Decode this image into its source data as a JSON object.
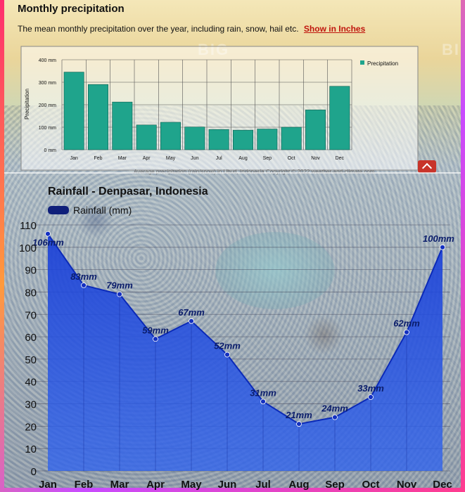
{
  "top": {
    "title": "Monthly precipitation",
    "subtitle": "The mean monthly precipitation over the year, including rain, snow, hail etc.",
    "show_inches": "Show in Inches",
    "caption": "Average precipitation (rain/snow) in Ubud, Indonesia   Copyright © 2022  weather-and-climate.com",
    "watermark": "BIG"
  },
  "chart_data": [
    {
      "type": "bar",
      "categories": [
        "Jan",
        "Feb",
        "Mar",
        "Apr",
        "May",
        "Jun",
        "Jul",
        "Aug",
        "Sep",
        "Oct",
        "Nov",
        "Dec"
      ],
      "series": [
        {
          "name": "Precipitation",
          "values": [
            345,
            290,
            212,
            110,
            122,
            101,
            90,
            87,
            92,
            100,
            177,
            282
          ]
        }
      ],
      "ylabel": "Precipitation",
      "ylim": [
        0,
        400
      ],
      "yticks": [
        "0 mm",
        "100 mm",
        "200 mm",
        "300 mm",
        "400 mm"
      ],
      "tick_values": [
        0,
        100,
        200,
        300,
        400
      ],
      "grid": true,
      "legend": "right",
      "color": "#1fa48c"
    },
    {
      "type": "area",
      "title": "Rainfall - Denpasar, Indonesia",
      "categories": [
        "Jan",
        "Feb",
        "Mar",
        "Apr",
        "May",
        "Jun",
        "Jul",
        "Aug",
        "Sep",
        "Oct",
        "Nov",
        "Dec"
      ],
      "series": [
        {
          "name": "Rainfall (mm)",
          "values": [
            106,
            83,
            79,
            59,
            67,
            52,
            31,
            21,
            24,
            33,
            62,
            100
          ]
        }
      ],
      "data_labels": [
        "106mm",
        "83mm",
        "79mm",
        "59mm",
        "67mm",
        "52mm",
        "31mm",
        "21mm",
        "24mm",
        "33mm",
        "62mm",
        "100mm"
      ],
      "ylim": [
        0,
        110
      ],
      "tick_values": [
        0,
        10,
        20,
        30,
        40,
        50,
        60,
        70,
        80,
        90,
        100,
        110
      ],
      "grid": true,
      "legend": "top-left",
      "color": "#1a3fd6"
    }
  ]
}
